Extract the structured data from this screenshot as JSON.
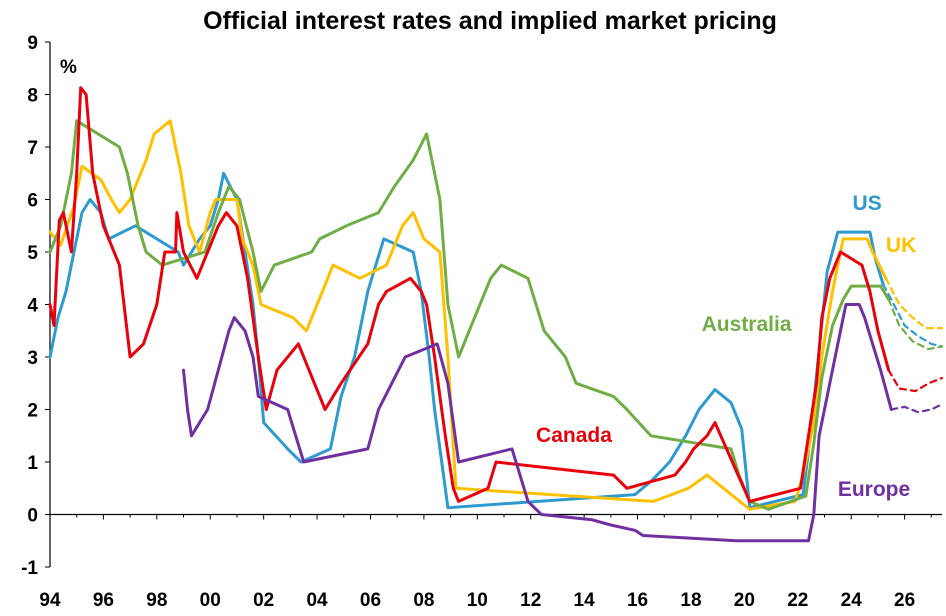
{
  "chart_data": {
    "type": "line",
    "title": "Official interest rates and implied market pricing",
    "ylabel": "%",
    "xlabel": "",
    "xlim": [
      1994,
      2027.4
    ],
    "ylim": [
      -1,
      9
    ],
    "x_tick_labels": [
      "94",
      "96",
      "98",
      "00",
      "02",
      "04",
      "06",
      "08",
      "10",
      "12",
      "14",
      "16",
      "18",
      "20",
      "22",
      "24",
      "26"
    ],
    "y_tick_labels": [
      "-1",
      "0",
      "1",
      "2",
      "3",
      "4",
      "5",
      "6",
      "7",
      "8",
      "9"
    ],
    "grid": false,
    "legend": "inline labels",
    "series": [
      {
        "name": "US",
        "color": "#2E9AD0",
        "forecast_from": 2025.2,
        "points": [
          [
            1994.0,
            3.0
          ],
          [
            1994.3,
            3.75
          ],
          [
            1994.6,
            4.25
          ],
          [
            1994.9,
            5.0
          ],
          [
            1995.2,
            5.75
          ],
          [
            1995.5,
            6.0
          ],
          [
            1995.9,
            5.75
          ],
          [
            1996.2,
            5.25
          ],
          [
            1997.2,
            5.5
          ],
          [
            1998.8,
            5.0
          ],
          [
            1999.0,
            4.75
          ],
          [
            1999.6,
            5.25
          ],
          [
            2000.0,
            5.5
          ],
          [
            2000.3,
            6.0
          ],
          [
            2000.5,
            6.5
          ],
          [
            2001.0,
            6.0
          ],
          [
            2001.3,
            5.0
          ],
          [
            2001.6,
            4.0
          ],
          [
            2001.8,
            3.0
          ],
          [
            2002.0,
            1.75
          ],
          [
            2002.9,
            1.25
          ],
          [
            2003.4,
            1.0
          ],
          [
            2004.5,
            1.25
          ],
          [
            2004.9,
            2.25
          ],
          [
            2005.4,
            3.0
          ],
          [
            2005.9,
            4.25
          ],
          [
            2006.5,
            5.25
          ],
          [
            2007.6,
            5.0
          ],
          [
            2007.9,
            4.25
          ],
          [
            2008.2,
            3.0
          ],
          [
            2008.4,
            2.0
          ],
          [
            2008.9,
            0.13
          ],
          [
            2015.9,
            0.38
          ],
          [
            2016.5,
            0.63
          ],
          [
            2017.2,
            1.0
          ],
          [
            2017.8,
            1.5
          ],
          [
            2018.3,
            2.0
          ],
          [
            2018.9,
            2.38
          ],
          [
            2019.5,
            2.13
          ],
          [
            2019.9,
            1.63
          ],
          [
            2020.2,
            0.13
          ],
          [
            2022.2,
            0.38
          ],
          [
            2022.5,
            1.63
          ],
          [
            2022.8,
            3.13
          ],
          [
            2023.1,
            4.63
          ],
          [
            2023.5,
            5.38
          ],
          [
            2024.7,
            5.38
          ],
          [
            2024.9,
            4.88
          ],
          [
            2025.2,
            4.38
          ]
        ],
        "forecast_points": [
          [
            2025.2,
            4.38
          ],
          [
            2025.6,
            4.0
          ],
          [
            2026.0,
            3.6
          ],
          [
            2026.5,
            3.4
          ],
          [
            2027.0,
            3.25
          ],
          [
            2027.4,
            3.2
          ]
        ]
      },
      {
        "name": "UK",
        "color": "#FFC000",
        "forecast_from": 2025.3,
        "points": [
          [
            1994.0,
            5.38
          ],
          [
            1994.4,
            5.13
          ],
          [
            1994.9,
            5.88
          ],
          [
            1995.2,
            6.63
          ],
          [
            1995.9,
            6.38
          ],
          [
            1996.3,
            6.0
          ],
          [
            1996.6,
            5.75
          ],
          [
            1997.0,
            6.0
          ],
          [
            1997.6,
            6.75
          ],
          [
            1997.9,
            7.25
          ],
          [
            1998.5,
            7.5
          ],
          [
            1998.9,
            6.5
          ],
          [
            1999.2,
            5.5
          ],
          [
            1999.6,
            5.0
          ],
          [
            2000.0,
            5.75
          ],
          [
            2000.2,
            6.0
          ],
          [
            2001.0,
            6.0
          ],
          [
            2001.2,
            5.25
          ],
          [
            2001.6,
            4.75
          ],
          [
            2001.9,
            4.0
          ],
          [
            2003.1,
            3.75
          ],
          [
            2003.6,
            3.5
          ],
          [
            2004.0,
            4.0
          ],
          [
            2004.6,
            4.75
          ],
          [
            2005.6,
            4.5
          ],
          [
            2006.6,
            4.75
          ],
          [
            2007.2,
            5.5
          ],
          [
            2007.6,
            5.75
          ],
          [
            2008.0,
            5.25
          ],
          [
            2008.6,
            5.0
          ],
          [
            2008.9,
            3.0
          ],
          [
            2009.2,
            0.5
          ],
          [
            2016.6,
            0.25
          ],
          [
            2017.9,
            0.5
          ],
          [
            2018.6,
            0.75
          ],
          [
            2020.2,
            0.1
          ],
          [
            2021.9,
            0.25
          ],
          [
            2022.2,
            0.75
          ],
          [
            2022.6,
            1.75
          ],
          [
            2022.9,
            3.0
          ],
          [
            2023.3,
            4.25
          ],
          [
            2023.7,
            5.25
          ],
          [
            2024.6,
            5.25
          ],
          [
            2024.8,
            5.0
          ],
          [
            2025.3,
            4.5
          ]
        ],
        "forecast_points": [
          [
            2025.3,
            4.5
          ],
          [
            2025.8,
            4.0
          ],
          [
            2026.3,
            3.75
          ],
          [
            2026.8,
            3.55
          ],
          [
            2027.4,
            3.55
          ]
        ]
      },
      {
        "name": "Australia",
        "color": "#70AD47",
        "forecast_from": 2025.4,
        "points": [
          [
            1994.0,
            5.0
          ],
          [
            1994.4,
            5.5
          ],
          [
            1994.8,
            6.5
          ],
          [
            1995.0,
            7.5
          ],
          [
            1996.6,
            7.0
          ],
          [
            1996.9,
            6.5
          ],
          [
            1997.3,
            5.5
          ],
          [
            1997.6,
            5.0
          ],
          [
            1998.2,
            4.75
          ],
          [
            1999.8,
            5.0
          ],
          [
            2000.3,
            5.75
          ],
          [
            2000.7,
            6.25
          ],
          [
            2001.1,
            6.0
          ],
          [
            2001.6,
            5.0
          ],
          [
            2001.9,
            4.25
          ],
          [
            2002.4,
            4.75
          ],
          [
            2003.8,
            5.0
          ],
          [
            2004.1,
            5.25
          ],
          [
            2005.1,
            5.5
          ],
          [
            2006.3,
            5.75
          ],
          [
            2006.9,
            6.25
          ],
          [
            2007.6,
            6.75
          ],
          [
            2008.1,
            7.25
          ],
          [
            2008.6,
            6.0
          ],
          [
            2008.9,
            4.0
          ],
          [
            2009.3,
            3.0
          ],
          [
            2009.9,
            3.75
          ],
          [
            2010.5,
            4.5
          ],
          [
            2010.9,
            4.75
          ],
          [
            2011.9,
            4.5
          ],
          [
            2012.5,
            3.5
          ],
          [
            2013.3,
            3.0
          ],
          [
            2013.7,
            2.5
          ],
          [
            2015.1,
            2.25
          ],
          [
            2015.6,
            2.0
          ],
          [
            2016.5,
            1.5
          ],
          [
            2019.5,
            1.25
          ],
          [
            2019.8,
            0.75
          ],
          [
            2020.2,
            0.25
          ],
          [
            2020.9,
            0.1
          ],
          [
            2022.3,
            0.35
          ],
          [
            2022.6,
            1.35
          ],
          [
            2022.9,
            2.6
          ],
          [
            2023.3,
            3.6
          ],
          [
            2023.7,
            4.1
          ],
          [
            2024.0,
            4.35
          ],
          [
            2025.1,
            4.35
          ],
          [
            2025.4,
            4.1
          ]
        ],
        "forecast_points": [
          [
            2025.4,
            4.1
          ],
          [
            2025.8,
            3.6
          ],
          [
            2026.3,
            3.3
          ],
          [
            2026.9,
            3.15
          ],
          [
            2027.4,
            3.2
          ]
        ]
      },
      {
        "name": "Canada",
        "color": "#E8000B",
        "forecast_from": 2025.4,
        "points": [
          [
            1994.0,
            4.0
          ],
          [
            1994.15,
            3.6
          ],
          [
            1994.35,
            5.6
          ],
          [
            1994.5,
            5.75
          ],
          [
            1994.8,
            5.0
          ],
          [
            1995.0,
            6.5
          ],
          [
            1995.15,
            8.13
          ],
          [
            1995.35,
            8.0
          ],
          [
            1995.6,
            6.5
          ],
          [
            1996.0,
            5.5
          ],
          [
            1996.6,
            4.75
          ],
          [
            1997.0,
            3.0
          ],
          [
            1997.5,
            3.25
          ],
          [
            1998.0,
            4.0
          ],
          [
            1998.3,
            5.0
          ],
          [
            1998.7,
            5.0
          ],
          [
            1998.75,
            5.75
          ],
          [
            1999.0,
            5.0
          ],
          [
            1999.5,
            4.5
          ],
          [
            1999.9,
            5.0
          ],
          [
            2000.3,
            5.5
          ],
          [
            2000.6,
            5.75
          ],
          [
            2001.0,
            5.5
          ],
          [
            2001.4,
            4.5
          ],
          [
            2001.8,
            3.0
          ],
          [
            2002.1,
            2.0
          ],
          [
            2002.5,
            2.75
          ],
          [
            2003.3,
            3.25
          ],
          [
            2003.9,
            2.5
          ],
          [
            2004.3,
            2.0
          ],
          [
            2004.9,
            2.5
          ],
          [
            2005.9,
            3.25
          ],
          [
            2006.3,
            4.0
          ],
          [
            2006.6,
            4.25
          ],
          [
            2007.5,
            4.5
          ],
          [
            2007.9,
            4.25
          ],
          [
            2008.1,
            4.0
          ],
          [
            2008.4,
            3.0
          ],
          [
            2008.6,
            2.25
          ],
          [
            2008.8,
            1.5
          ],
          [
            2009.1,
            0.5
          ],
          [
            2009.3,
            0.25
          ],
          [
            2010.4,
            0.5
          ],
          [
            2010.7,
            1.0
          ],
          [
            2015.1,
            0.75
          ],
          [
            2015.6,
            0.5
          ],
          [
            2017.4,
            0.75
          ],
          [
            2017.8,
            1.0
          ],
          [
            2018.1,
            1.25
          ],
          [
            2018.6,
            1.5
          ],
          [
            2018.9,
            1.75
          ],
          [
            2020.2,
            0.25
          ],
          [
            2022.1,
            0.5
          ],
          [
            2022.4,
            1.5
          ],
          [
            2022.7,
            2.5
          ],
          [
            2022.9,
            3.75
          ],
          [
            2023.2,
            4.5
          ],
          [
            2023.6,
            5.0
          ],
          [
            2024.4,
            4.75
          ],
          [
            2024.7,
            4.25
          ],
          [
            2025.0,
            3.5
          ],
          [
            2025.4,
            2.75
          ]
        ],
        "forecast_points": [
          [
            2025.4,
            2.75
          ],
          [
            2025.8,
            2.4
          ],
          [
            2026.4,
            2.35
          ],
          [
            2026.9,
            2.5
          ],
          [
            2027.4,
            2.6
          ]
        ]
      },
      {
        "name": "Europe",
        "color": "#7030A0",
        "forecast_from": 2025.5,
        "points": [
          [
            1999.0,
            2.75
          ],
          [
            1999.15,
            2.0
          ],
          [
            1999.3,
            1.5
          ],
          [
            1999.9,
            2.0
          ],
          [
            2000.3,
            2.75
          ],
          [
            2000.7,
            3.5
          ],
          [
            2000.9,
            3.75
          ],
          [
            2001.3,
            3.5
          ],
          [
            2001.6,
            3.0
          ],
          [
            2001.8,
            2.25
          ],
          [
            2002.9,
            2.0
          ],
          [
            2003.2,
            1.5
          ],
          [
            2003.5,
            1.0
          ],
          [
            2005.9,
            1.25
          ],
          [
            2006.3,
            2.0
          ],
          [
            2006.8,
            2.5
          ],
          [
            2007.3,
            3.0
          ],
          [
            2008.5,
            3.25
          ],
          [
            2008.9,
            2.5
          ],
          [
            2009.3,
            1.0
          ],
          [
            2011.3,
            1.25
          ],
          [
            2011.6,
            0.75
          ],
          [
            2011.9,
            0.25
          ],
          [
            2012.4,
            0.0
          ],
          [
            2014.3,
            -0.1
          ],
          [
            2015.0,
            -0.2
          ],
          [
            2015.9,
            -0.3
          ],
          [
            2016.2,
            -0.4
          ],
          [
            2019.7,
            -0.5
          ],
          [
            2022.4,
            -0.5
          ],
          [
            2022.6,
            0.0
          ],
          [
            2022.8,
            1.5
          ],
          [
            2023.2,
            2.5
          ],
          [
            2023.6,
            3.5
          ],
          [
            2023.8,
            4.0
          ],
          [
            2024.3,
            4.0
          ],
          [
            2024.5,
            3.75
          ],
          [
            2024.8,
            3.25
          ],
          [
            2025.1,
            2.75
          ],
          [
            2025.5,
            2.0
          ]
        ],
        "forecast_points": [
          [
            2025.5,
            2.0
          ],
          [
            2026.0,
            2.05
          ],
          [
            2026.5,
            1.95
          ],
          [
            2027.0,
            2.0
          ],
          [
            2027.4,
            2.1
          ]
        ]
      }
    ],
    "annotations": [
      {
        "text": "US",
        "color": "#2E9AD0",
        "x": 2024.05,
        "y": 5.8
      },
      {
        "text": "UK",
        "color": "#FFC000",
        "x": 2025.3,
        "y": 5.0
      },
      {
        "text": "Australia",
        "color": "#70AD47",
        "x": 2018.4,
        "y": 3.5
      },
      {
        "text": "Canada",
        "color": "#E8000B",
        "x": 2012.2,
        "y": 1.38
      },
      {
        "text": "Europe",
        "color": "#7030A0",
        "x": 2023.5,
        "y": 0.35
      }
    ]
  }
}
